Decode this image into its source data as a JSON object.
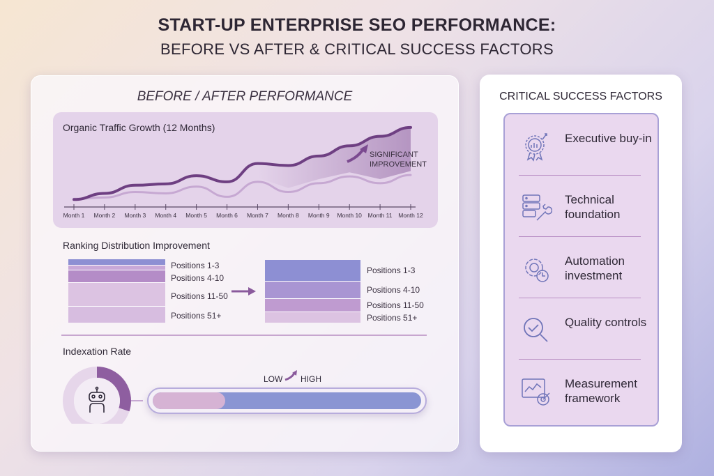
{
  "title": {
    "line1": "START-UP ENTERPRISE SEO PERFORMANCE:",
    "line2": "BEFORE VS AFTER & CRITICAL SUCCESS FACTORS"
  },
  "left_panel": {
    "heading": "BEFORE / AFTER PERFORMANCE",
    "ranking": {
      "title": "Ranking Distribution Improvement",
      "labels": [
        "Positions 1-3",
        "Positions 4-10",
        "Positions 11-50",
        "Positions 51+"
      ],
      "before_share": [
        5,
        22,
        40,
        33
      ],
      "after_share": [
        32,
        26,
        22,
        20
      ]
    },
    "indexation": {
      "title": "Indexation Rate",
      "low": "LOW",
      "high": "HIGH",
      "donut_fraction": 0.3,
      "bar_low_fraction": 0.27
    }
  },
  "right_panel": {
    "heading": "CRITICAL SUCCESS FACTORS",
    "factors": [
      {
        "label": "Executive buy-in",
        "icon": "award-badge-icon"
      },
      {
        "label": "Technical foundation",
        "icon": "server-wrench-icon"
      },
      {
        "label": "Automation investment",
        "icon": "gear-clock-icon"
      },
      {
        "label": "Quality controls",
        "icon": "magnifier-check-icon"
      },
      {
        "label": "Measurement framework",
        "icon": "chart-target-icon"
      }
    ]
  },
  "chart_data": {
    "type": "line",
    "title": "Organic Traffic Growth (12 Months)",
    "categories": [
      "Month 1",
      "Month 2",
      "Month 3",
      "Month 4",
      "Month 5",
      "Month 6",
      "Month 7",
      "Month 8",
      "Month 9",
      "Month 10",
      "Month 11",
      "Month 12"
    ],
    "series": [
      {
        "name": "After",
        "color": "#6e3f82",
        "values": [
          11,
          20,
          32,
          34,
          46,
          37,
          64,
          61,
          75,
          90,
          104,
          117
        ]
      },
      {
        "name": "Before",
        "color": "#c6a8d2",
        "values": [
          12,
          14,
          22,
          20,
          30,
          15,
          37,
          22,
          35,
          45,
          35,
          47
        ]
      }
    ],
    "ylim": [
      0,
      120
    ],
    "annotation": "SIGNIFICANT IMPROVEMENT",
    "grid": false
  }
}
